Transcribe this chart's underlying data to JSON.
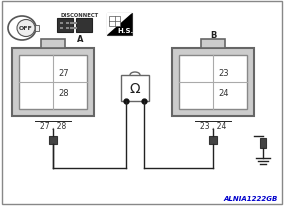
{
  "bg_color": "#ffffff",
  "border_color": "#666666",
  "title_text": "ALNIA1222GB",
  "title_color": "#0000cc",
  "connector_A_label": "A",
  "connector_B_label": "B",
  "connector_A_pins": [
    "27",
    "28"
  ],
  "connector_B_pins": [
    "23",
    "24"
  ],
  "connector_A_footer": "27 , 28",
  "connector_B_footer": "23 , 24",
  "disconnect_label": "DISCONNECT",
  "hs_label": "H.S.",
  "off_label": "OFF",
  "ohmmeter_symbol": "Ω",
  "wire_color": "#222222",
  "connector_fill": "#cccccc",
  "inner_fill": "#ffffff"
}
